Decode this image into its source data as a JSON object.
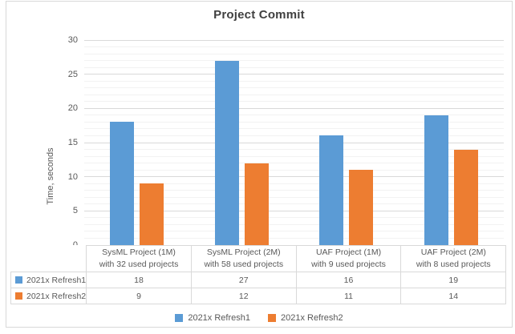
{
  "chart_data": {
    "type": "bar",
    "title": "Project Commit",
    "ylabel": "Time, seconds",
    "categories": [
      "SysML Project (1M)\nwith 32 used projects",
      "SysML Project (2M)\nwith 58 used projects",
      "UAF Project (1M)\nwith 9 used projects",
      "UAF Project (2M)\nwith 8 used projects"
    ],
    "series": [
      {
        "name": "2021x Refresh1",
        "color": "#5B9BD5",
        "values": [
          18,
          27,
          16,
          19
        ]
      },
      {
        "name": "2021x Refresh2",
        "color": "#ED7D31",
        "values": [
          9,
          12,
          11,
          14
        ]
      }
    ],
    "ylim": [
      0,
      30
    ],
    "ytick_step": 5,
    "minor_unit": 1,
    "grid": true,
    "legend_position": "bottom",
    "show_data_table": true,
    "style": {
      "major_grid_color": "#D9D9D9",
      "minor_grid_color": "#F2F2F2",
      "table_border_color": "#D9D9D9",
      "text_color": "#595959",
      "title_color": "#404040"
    }
  }
}
